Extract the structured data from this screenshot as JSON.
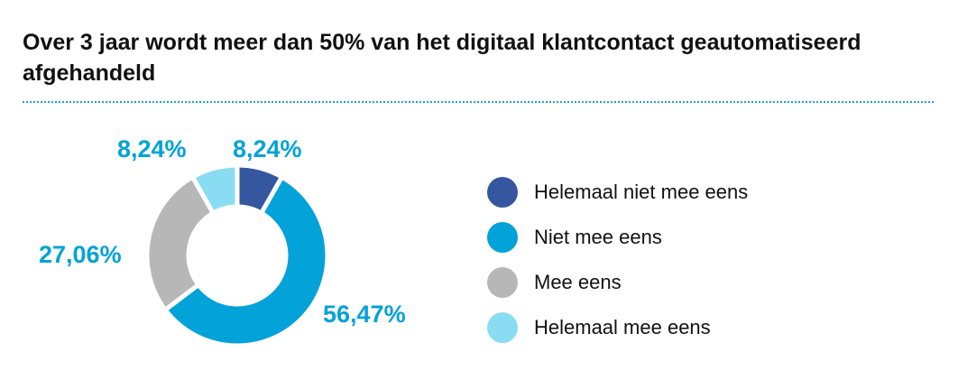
{
  "title": "Over 3 jaar wordt meer dan 50% van het digitaal klantcontact geautomatiseerd afgehandeld",
  "chart_data": {
    "type": "pie",
    "variant": "donut",
    "title": "Over 3 jaar wordt meer dan 50% van het digitaal klantcontact geautomatiseerd afgehandeld",
    "legend_position": "right",
    "slices": [
      {
        "name": "Helemaal niet mee eens",
        "value": 8.24,
        "label": "8,24%",
        "color": "#34579f"
      },
      {
        "name": "Niet mee eens",
        "value": 56.47,
        "label": "56,47%",
        "color": "#03a2d9"
      },
      {
        "name": "Mee eens",
        "value": 27.06,
        "label": "27,06%",
        "color": "#b7b7b7"
      },
      {
        "name": "Helemaal mee eens",
        "value": 8.24,
        "label": "8,24%",
        "color": "#8adcf3"
      }
    ]
  }
}
